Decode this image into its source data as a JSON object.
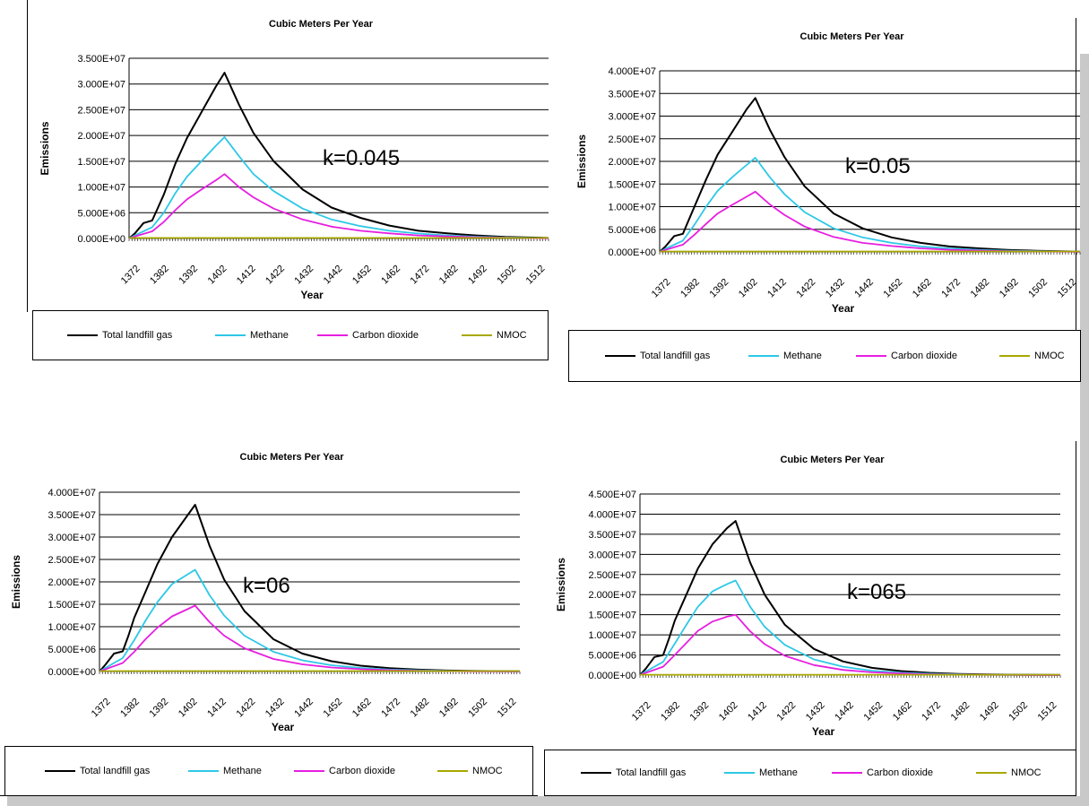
{
  "colors": {
    "total": "#000000",
    "methane": "#2ec8e6",
    "co2": "#e61fe0",
    "nmoc": "#a8a800",
    "grid": "#000000",
    "shadow": "#c9c9c9"
  },
  "legend": {
    "items": [
      {
        "name": "Total landfill gas",
        "color": "#000000"
      },
      {
        "name": "Methane",
        "color": "#2ec8e6"
      },
      {
        "name": "Carbon dioxide",
        "color": "#e61fe0"
      },
      {
        "name": "NMOC",
        "color": "#a8a800"
      }
    ]
  },
  "chart_data": [
    {
      "type": "line",
      "title": "Cubic Meters Per Year",
      "xlabel": "Year",
      "ylabel": "Emissions",
      "annotation": "k=0.045",
      "xlim": [
        1370,
        1515
      ],
      "ylim": [
        0,
        35000000
      ],
      "y_ticks": [
        "0.000E+00",
        "5.000E+06",
        "1.000E+07",
        "1.500E+07",
        "2.000E+07",
        "2.500E+07",
        "3.000E+07",
        "3.500E+07"
      ],
      "x_ticks": [
        "1372",
        "1382",
        "1392",
        "1402",
        "1412",
        "1422",
        "1432",
        "1442",
        "1452",
        "1462",
        "1472",
        "1482",
        "1492",
        "1502",
        "1512"
      ],
      "peak_x": 1403,
      "series": [
        {
          "name": "Total landfill gas",
          "x": [
            1370,
            1372,
            1375,
            1378,
            1380,
            1382,
            1386,
            1390,
            1395,
            1400,
            1403,
            1408,
            1413,
            1420,
            1430,
            1440,
            1450,
            1460,
            1470,
            1480,
            1490,
            1500,
            1515
          ],
          "values": [
            0,
            1000000,
            3000000,
            3500000,
            6000000,
            8500000,
            14500000,
            19500000,
            24500000,
            29500000,
            32200000,
            26000000,
            20500000,
            15000000,
            9500000,
            6000000,
            4000000,
            2500000,
            1500000,
            1000000,
            600000,
            300000,
            100000
          ]
        },
        {
          "name": "Methane",
          "x": [
            1370,
            1372,
            1378,
            1382,
            1386,
            1390,
            1395,
            1400,
            1403,
            1408,
            1413,
            1420,
            1430,
            1440,
            1450,
            1460,
            1470,
            1480,
            1490,
            1500,
            1515
          ],
          "values": [
            0,
            600000,
            2200000,
            5000000,
            8800000,
            12000000,
            15000000,
            18000000,
            19700000,
            16000000,
            12500000,
            9200000,
            5800000,
            3700000,
            2400000,
            1500000,
            950000,
            600000,
            350000,
            200000,
            60000
          ]
        },
        {
          "name": "Carbon dioxide",
          "x": [
            1370,
            1372,
            1378,
            1382,
            1386,
            1390,
            1395,
            1400,
            1403,
            1408,
            1413,
            1420,
            1430,
            1440,
            1450,
            1460,
            1470,
            1480,
            1490,
            1500,
            1515
          ],
          "values": [
            0,
            400000,
            1400000,
            3200000,
            5500000,
            7600000,
            9500000,
            11300000,
            12500000,
            10000000,
            8000000,
            5800000,
            3700000,
            2300000,
            1500000,
            1000000,
            600000,
            400000,
            250000,
            150000,
            40000
          ]
        },
        {
          "name": "NMOC",
          "x": [
            1370,
            1515
          ],
          "values": [
            100000,
            100000
          ]
        }
      ]
    },
    {
      "type": "line",
      "title": "Cubic Meters Per Year",
      "xlabel": "Year",
      "ylabel": "Emissions",
      "annotation": "k=0.05",
      "xlim": [
        1370,
        1515
      ],
      "ylim": [
        0,
        40000000
      ],
      "y_ticks": [
        "0.000E+00",
        "5.000E+06",
        "1.000E+07",
        "1.500E+07",
        "2.000E+07",
        "2.500E+07",
        "3.000E+07",
        "3.500E+07",
        "4.000E+07"
      ],
      "x_ticks": [
        "1372",
        "1382",
        "1392",
        "1402",
        "1412",
        "1422",
        "1432",
        "1442",
        "1452",
        "1462",
        "1472",
        "1482",
        "1492",
        "1502",
        "1512"
      ],
      "peak_x": 1403,
      "series": [
        {
          "name": "Total landfill gas",
          "x": [
            1370,
            1372,
            1375,
            1378,
            1380,
            1382,
            1386,
            1390,
            1395,
            1400,
            1403,
            1408,
            1413,
            1420,
            1430,
            1440,
            1450,
            1460,
            1470,
            1480,
            1490,
            1500,
            1515
          ],
          "values": [
            0,
            1200000,
            3500000,
            4000000,
            7000000,
            10000000,
            16000000,
            21500000,
            26500000,
            31500000,
            34000000,
            27000000,
            21000000,
            14500000,
            8500000,
            5200000,
            3200000,
            2000000,
            1200000,
            800000,
            450000,
            250000,
            80000
          ]
        },
        {
          "name": "Methane",
          "x": [
            1370,
            1372,
            1378,
            1382,
            1386,
            1390,
            1395,
            1400,
            1403,
            1408,
            1413,
            1420,
            1430,
            1440,
            1450,
            1460,
            1470,
            1480,
            1490,
            1500,
            1515
          ],
          "values": [
            0,
            700000,
            2500000,
            6000000,
            10000000,
            13500000,
            16500000,
            19200000,
            20800000,
            16500000,
            12800000,
            8800000,
            5200000,
            3200000,
            2000000,
            1200000,
            750000,
            450000,
            280000,
            150000,
            50000
          ]
        },
        {
          "name": "Carbon dioxide",
          "x": [
            1370,
            1372,
            1378,
            1382,
            1386,
            1390,
            1395,
            1400,
            1403,
            1408,
            1413,
            1420,
            1430,
            1440,
            1450,
            1460,
            1470,
            1480,
            1490,
            1500,
            1515
          ],
          "values": [
            0,
            450000,
            1600000,
            3800000,
            6200000,
            8500000,
            10400000,
            12200000,
            13300000,
            10500000,
            8200000,
            5600000,
            3300000,
            2000000,
            1300000,
            800000,
            480000,
            300000,
            180000,
            100000,
            30000
          ]
        },
        {
          "name": "NMOC",
          "x": [
            1370,
            1515
          ],
          "values": [
            100000,
            100000
          ]
        }
      ]
    },
    {
      "type": "line",
      "title": "Cubic Meters Per Year",
      "xlabel": "Year",
      "ylabel": "Emissions",
      "annotation": "k=06",
      "xlim": [
        1370,
        1515
      ],
      "ylim": [
        0,
        40000000
      ],
      "y_ticks": [
        "0.000E+00",
        "5.000E+06",
        "1.000E+07",
        "1.500E+07",
        "2.000E+07",
        "2.500E+07",
        "3.000E+07",
        "3.500E+07",
        "4.000E+07"
      ],
      "x_ticks": [
        "1372",
        "1382",
        "1392",
        "1402",
        "1412",
        "1422",
        "1432",
        "1442",
        "1452",
        "1462",
        "1472",
        "1482",
        "1492",
        "1502",
        "1512"
      ],
      "peak_x": 1403,
      "series": [
        {
          "name": "Total landfill gas",
          "x": [
            1370,
            1372,
            1375,
            1378,
            1380,
            1382,
            1386,
            1390,
            1395,
            1400,
            1403,
            1408,
            1413,
            1420,
            1430,
            1440,
            1450,
            1460,
            1470,
            1480,
            1490,
            1500,
            1515
          ],
          "values": [
            0,
            1500000,
            4000000,
            4500000,
            8000000,
            12000000,
            18000000,
            24000000,
            30000000,
            34500000,
            37200000,
            28000000,
            20500000,
            13500000,
            7200000,
            4000000,
            2300000,
            1300000,
            750000,
            420000,
            230000,
            120000,
            40000
          ]
        },
        {
          "name": "Methane",
          "x": [
            1370,
            1372,
            1378,
            1382,
            1386,
            1390,
            1395,
            1400,
            1403,
            1408,
            1413,
            1420,
            1430,
            1440,
            1450,
            1460,
            1470,
            1480,
            1490,
            1500,
            1515
          ],
          "values": [
            0,
            800000,
            3000000,
            7000000,
            11500000,
            15500000,
            19500000,
            21500000,
            22700000,
            17000000,
            12500000,
            8000000,
            4400000,
            2500000,
            1400000,
            800000,
            450000,
            260000,
            140000,
            70000,
            20000
          ]
        },
        {
          "name": "Carbon dioxide",
          "x": [
            1370,
            1372,
            1378,
            1382,
            1386,
            1390,
            1395,
            1400,
            1403,
            1408,
            1413,
            1420,
            1430,
            1440,
            1450,
            1460,
            1470,
            1480,
            1490,
            1500,
            1515
          ],
          "values": [
            0,
            500000,
            1900000,
            4400000,
            7300000,
            9800000,
            12300000,
            13800000,
            14700000,
            11000000,
            8000000,
            5200000,
            2800000,
            1600000,
            900000,
            520000,
            300000,
            170000,
            90000,
            50000,
            15000
          ]
        },
        {
          "name": "NMOC",
          "x": [
            1370,
            1515
          ],
          "values": [
            100000,
            100000
          ]
        }
      ]
    },
    {
      "type": "line",
      "title": "Cubic Meters Per Year",
      "xlabel": "Year",
      "ylabel": "Emissions",
      "annotation": "k=065",
      "xlim": [
        1370,
        1515
      ],
      "ylim": [
        0,
        45000000
      ],
      "y_ticks": [
        "0.000E+00",
        "5.000E+06",
        "1.000E+07",
        "1.500E+07",
        "2.000E+07",
        "2.500E+07",
        "3.000E+07",
        "3.500E+07",
        "4.000E+07",
        "4.500E+07"
      ],
      "x_ticks": [
        "1372",
        "1382",
        "1392",
        "1402",
        "1412",
        "1422",
        "1432",
        "1442",
        "1452",
        "1462",
        "1472",
        "1482",
        "1492",
        "1502",
        "1512"
      ],
      "peak_x": 1403,
      "series": [
        {
          "name": "Total landfill gas",
          "x": [
            1370,
            1372,
            1375,
            1378,
            1380,
            1382,
            1386,
            1390,
            1395,
            1400,
            1403,
            1408,
            1413,
            1420,
            1430,
            1440,
            1450,
            1460,
            1470,
            1480,
            1490,
            1500,
            1515
          ],
          "values": [
            0,
            1600000,
            4500000,
            5000000,
            9000000,
            13500000,
            20000000,
            26500000,
            32500000,
            36500000,
            38300000,
            28000000,
            20000000,
            12500000,
            6500000,
            3400000,
            1800000,
            1000000,
            550000,
            300000,
            160000,
            80000,
            30000
          ]
        },
        {
          "name": "Methane",
          "x": [
            1370,
            1372,
            1378,
            1382,
            1386,
            1390,
            1395,
            1400,
            1403,
            1408,
            1413,
            1420,
            1430,
            1440,
            1450,
            1460,
            1470,
            1480,
            1490,
            1500,
            1515
          ],
          "values": [
            0,
            900000,
            3300000,
            7800000,
            12500000,
            17000000,
            20800000,
            22600000,
            23500000,
            17000000,
            12000000,
            7500000,
            3900000,
            2100000,
            1100000,
            600000,
            330000,
            180000,
            100000,
            50000,
            15000
          ]
        },
        {
          "name": "Carbon dioxide",
          "x": [
            1370,
            1372,
            1378,
            1382,
            1386,
            1390,
            1395,
            1400,
            1403,
            1408,
            1413,
            1420,
            1430,
            1440,
            1450,
            1460,
            1470,
            1480,
            1490,
            1500,
            1515
          ],
          "values": [
            0,
            550000,
            2100000,
            5000000,
            8000000,
            11000000,
            13300000,
            14500000,
            15000000,
            10900000,
            7700000,
            4800000,
            2500000,
            1300000,
            700000,
            390000,
            210000,
            120000,
            60000,
            30000,
            10000
          ]
        },
        {
          "name": "NMOC",
          "x": [
            1370,
            1515
          ],
          "values": [
            100000,
            100000
          ]
        }
      ]
    }
  ]
}
